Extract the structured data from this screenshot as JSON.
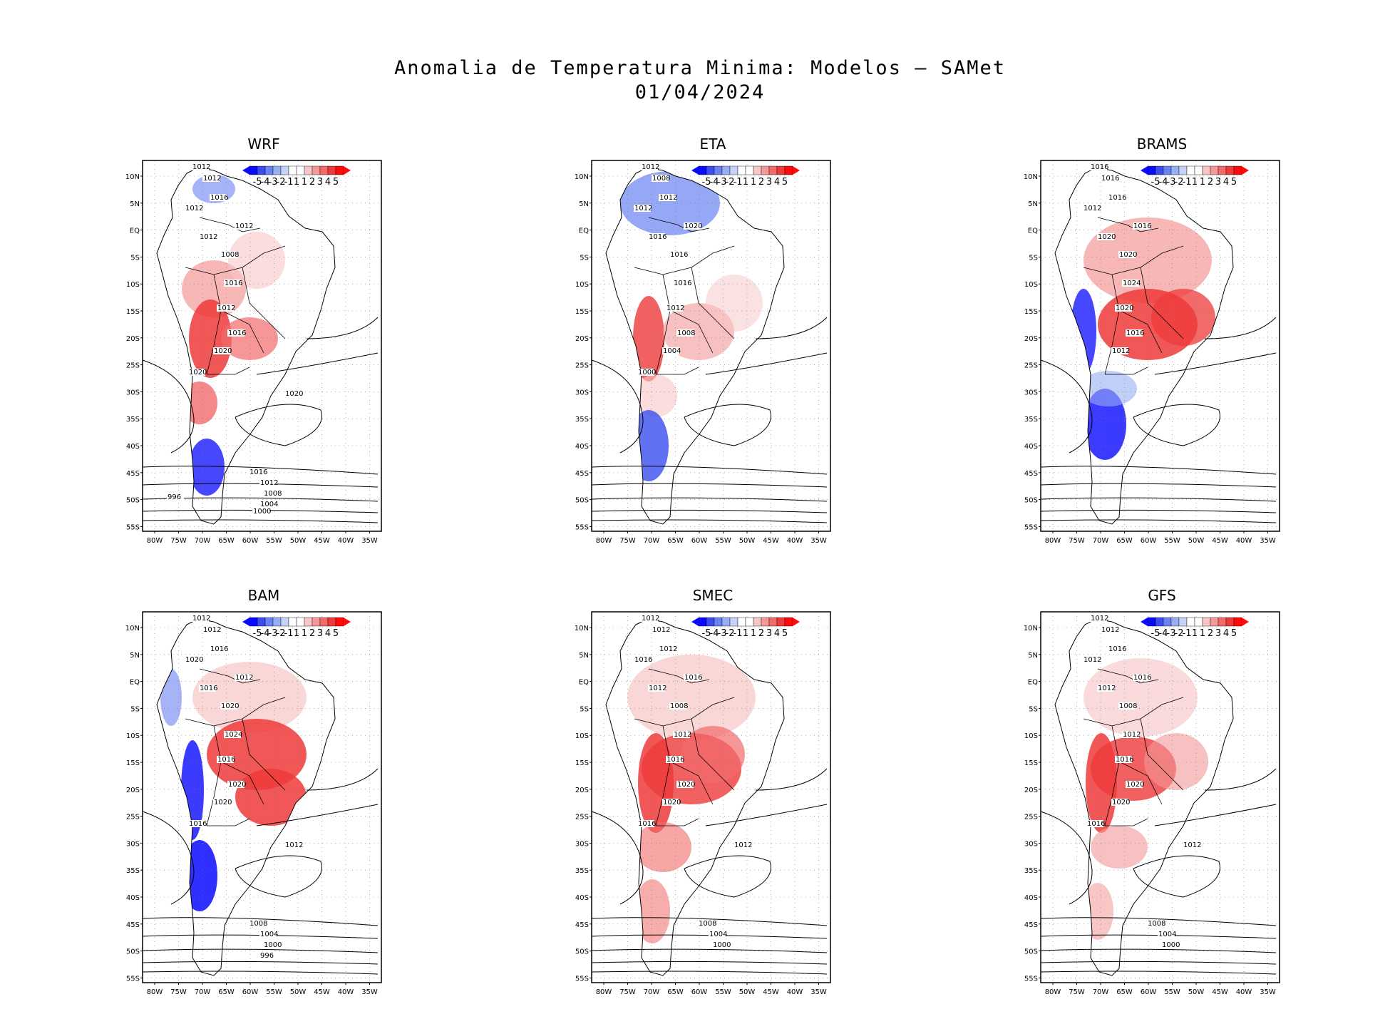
{
  "title": {
    "line1": "Anomalia de Temperatura Minima: Modelos – SAMet",
    "line2": "01/04/2024"
  },
  "axis": {
    "lat_labels": [
      "10N",
      "5N",
      "EQ",
      "5S",
      "10S",
      "15S",
      "20S",
      "25S",
      "30S",
      "35S",
      "40S",
      "45S",
      "50S",
      "55S"
    ],
    "lon_labels": [
      "80W",
      "75W",
      "70W",
      "65W",
      "60W",
      "55W",
      "50W",
      "45W",
      "40W",
      "35W"
    ]
  },
  "colorbar": {
    "labels": [
      "-5",
      "-4",
      "-3",
      "-2",
      "-1",
      "1",
      "1",
      "2",
      "3",
      "4",
      "5"
    ],
    "colors": [
      "#0a0aff",
      "#3a4ef0",
      "#6a82f2",
      "#98aef4",
      "#c6d2f8",
      "#ffffff",
      "#ffffff",
      "#f8c6c6",
      "#f49898",
      "#f26a6a",
      "#ee3a3a",
      "#ff0a0a"
    ]
  },
  "panels": [
    {
      "name": "WRF",
      "isobars": [
        "1012",
        "1012",
        "1016",
        "1012",
        "1012",
        "1012",
        "1008",
        "1016",
        "1012",
        "1016",
        "1020",
        "1020",
        "1020",
        "1016",
        "1012",
        "1008",
        "1004",
        "1000",
        "996"
      ]
    },
    {
      "name": "ETA",
      "isobars": [
        "1012",
        "1008",
        "1012",
        "1012",
        "1016",
        "1020",
        "1016",
        "1016",
        "1012",
        "1008",
        "1004",
        "1000"
      ]
    },
    {
      "name": "BRAMS",
      "isobars": [
        "1016",
        "1016",
        "1016",
        "1012",
        "1020",
        "1016",
        "1020",
        "1024",
        "1020",
        "1016",
        "1012"
      ]
    },
    {
      "name": "BAM",
      "isobars": [
        "1012",
        "1012",
        "1016",
        "1020",
        "1016",
        "1012",
        "1020",
        "1024",
        "1016",
        "1020",
        "1020",
        "1016",
        "1012",
        "1008",
        "1004",
        "1000",
        "996"
      ]
    },
    {
      "name": "SMEC",
      "isobars": [
        "1012",
        "1012",
        "1012",
        "1016",
        "1012",
        "1016",
        "1008",
        "1012",
        "1016",
        "1020",
        "1020",
        "1016",
        "1012",
        "1008",
        "1004",
        "1000"
      ]
    },
    {
      "name": "GFS",
      "isobars": [
        "1012",
        "1012",
        "1016",
        "1012",
        "1012",
        "1016",
        "1008",
        "1012",
        "1016",
        "1020",
        "1020",
        "1016",
        "1012",
        "1008",
        "1004",
        "1000"
      ]
    }
  ]
}
